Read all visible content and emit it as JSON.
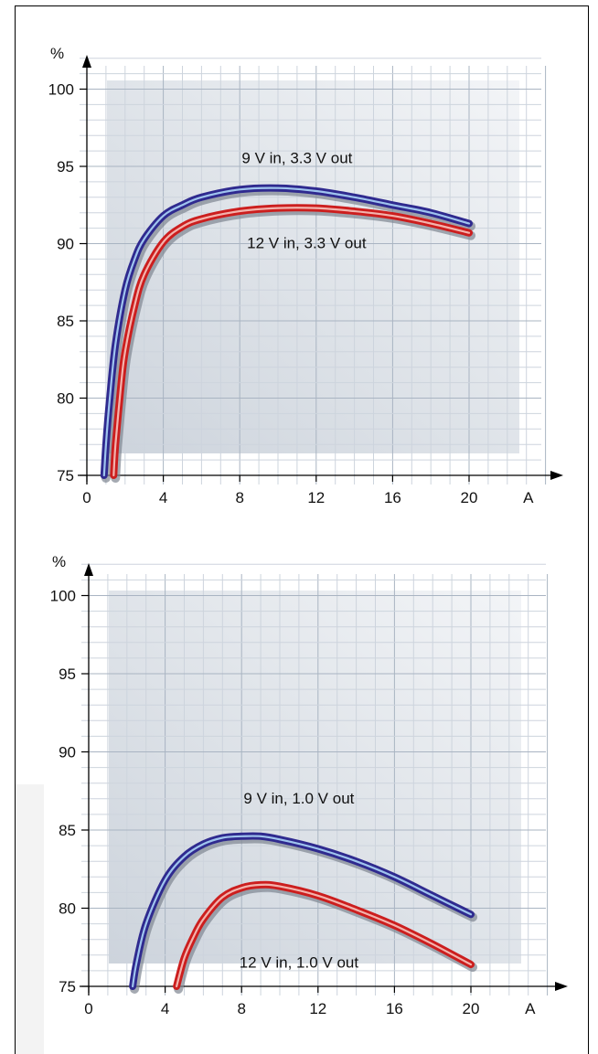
{
  "chart_data": [
    {
      "type": "line",
      "ylabel": "%",
      "xlabel": "A",
      "ylim": [
        75,
        100
      ],
      "xlim": [
        0,
        20
      ],
      "x_ticks": [
        "0",
        "4",
        "8",
        "12",
        "16",
        "20"
      ],
      "y_ticks": [
        "75",
        "80",
        "85",
        "90",
        "95",
        "100"
      ],
      "grid": true,
      "series": [
        {
          "name": "9 V in, 3.3 V out",
          "color": "#2f2a8f",
          "x": [
            0.9,
            1.0,
            1.2,
            1.5,
            2,
            2.5,
            3,
            4,
            5,
            6,
            8,
            10,
            12,
            14,
            16,
            18,
            20
          ],
          "y": [
            75,
            77,
            80,
            83.5,
            87,
            89,
            90.3,
            91.8,
            92.5,
            93.0,
            93.5,
            93.6,
            93.4,
            93.0,
            92.5,
            92.0,
            91.3
          ]
        },
        {
          "name": "12 V in, 3.3 V out",
          "color": "#cc1e1e",
          "x": [
            1.4,
            1.5,
            1.8,
            2,
            2.5,
            3,
            4,
            5,
            6,
            8,
            10,
            12,
            14,
            16,
            18,
            20
          ],
          "y": [
            75,
            77,
            81,
            83,
            86,
            88,
            90.1,
            91.1,
            91.6,
            92.1,
            92.3,
            92.3,
            92.1,
            91.8,
            91.3,
            90.7
          ]
        }
      ],
      "annotations": [
        {
          "text": "9 V in, 3.3 V out",
          "x": 11,
          "y": 95.2
        },
        {
          "text": "12 V in, 3.3 V out",
          "x": 11.5,
          "y": 89.7
        }
      ]
    },
    {
      "type": "line",
      "ylabel": "%",
      "xlabel": "A",
      "ylim": [
        75,
        100
      ],
      "xlim": [
        0,
        20
      ],
      "x_ticks": [
        "0",
        "4",
        "8",
        "12",
        "16",
        "20"
      ],
      "y_ticks": [
        "75",
        "80",
        "85",
        "90",
        "95",
        "100"
      ],
      "grid": true,
      "series": [
        {
          "name": "9 V in, 1.0 V out",
          "color": "#2f2a8f",
          "x": [
            2.3,
            2.5,
            3,
            4,
            5,
            6,
            7,
            8,
            9,
            10,
            12,
            14,
            16,
            18,
            20
          ],
          "y": [
            75,
            76.5,
            79,
            81.8,
            83.3,
            84.1,
            84.5,
            84.6,
            84.6,
            84.4,
            83.8,
            83.0,
            82.0,
            80.8,
            79.6
          ]
        },
        {
          "name": "12 V in, 1.0 V out",
          "color": "#cc1e1e",
          "x": [
            4.6,
            5,
            5.5,
            6,
            7,
            8,
            9,
            10,
            12,
            14,
            16,
            18,
            20
          ],
          "y": [
            75,
            76.8,
            78.2,
            79.3,
            80.7,
            81.3,
            81.5,
            81.4,
            80.8,
            79.9,
            78.9,
            77.7,
            76.4
          ]
        }
      ],
      "annotations": [
        {
          "text": "9 V in, 1.0 V out",
          "x": 11,
          "y": 86.7
        },
        {
          "text": "12 V in, 1.0 V out",
          "x": 11,
          "y": 76.2
        }
      ]
    }
  ]
}
